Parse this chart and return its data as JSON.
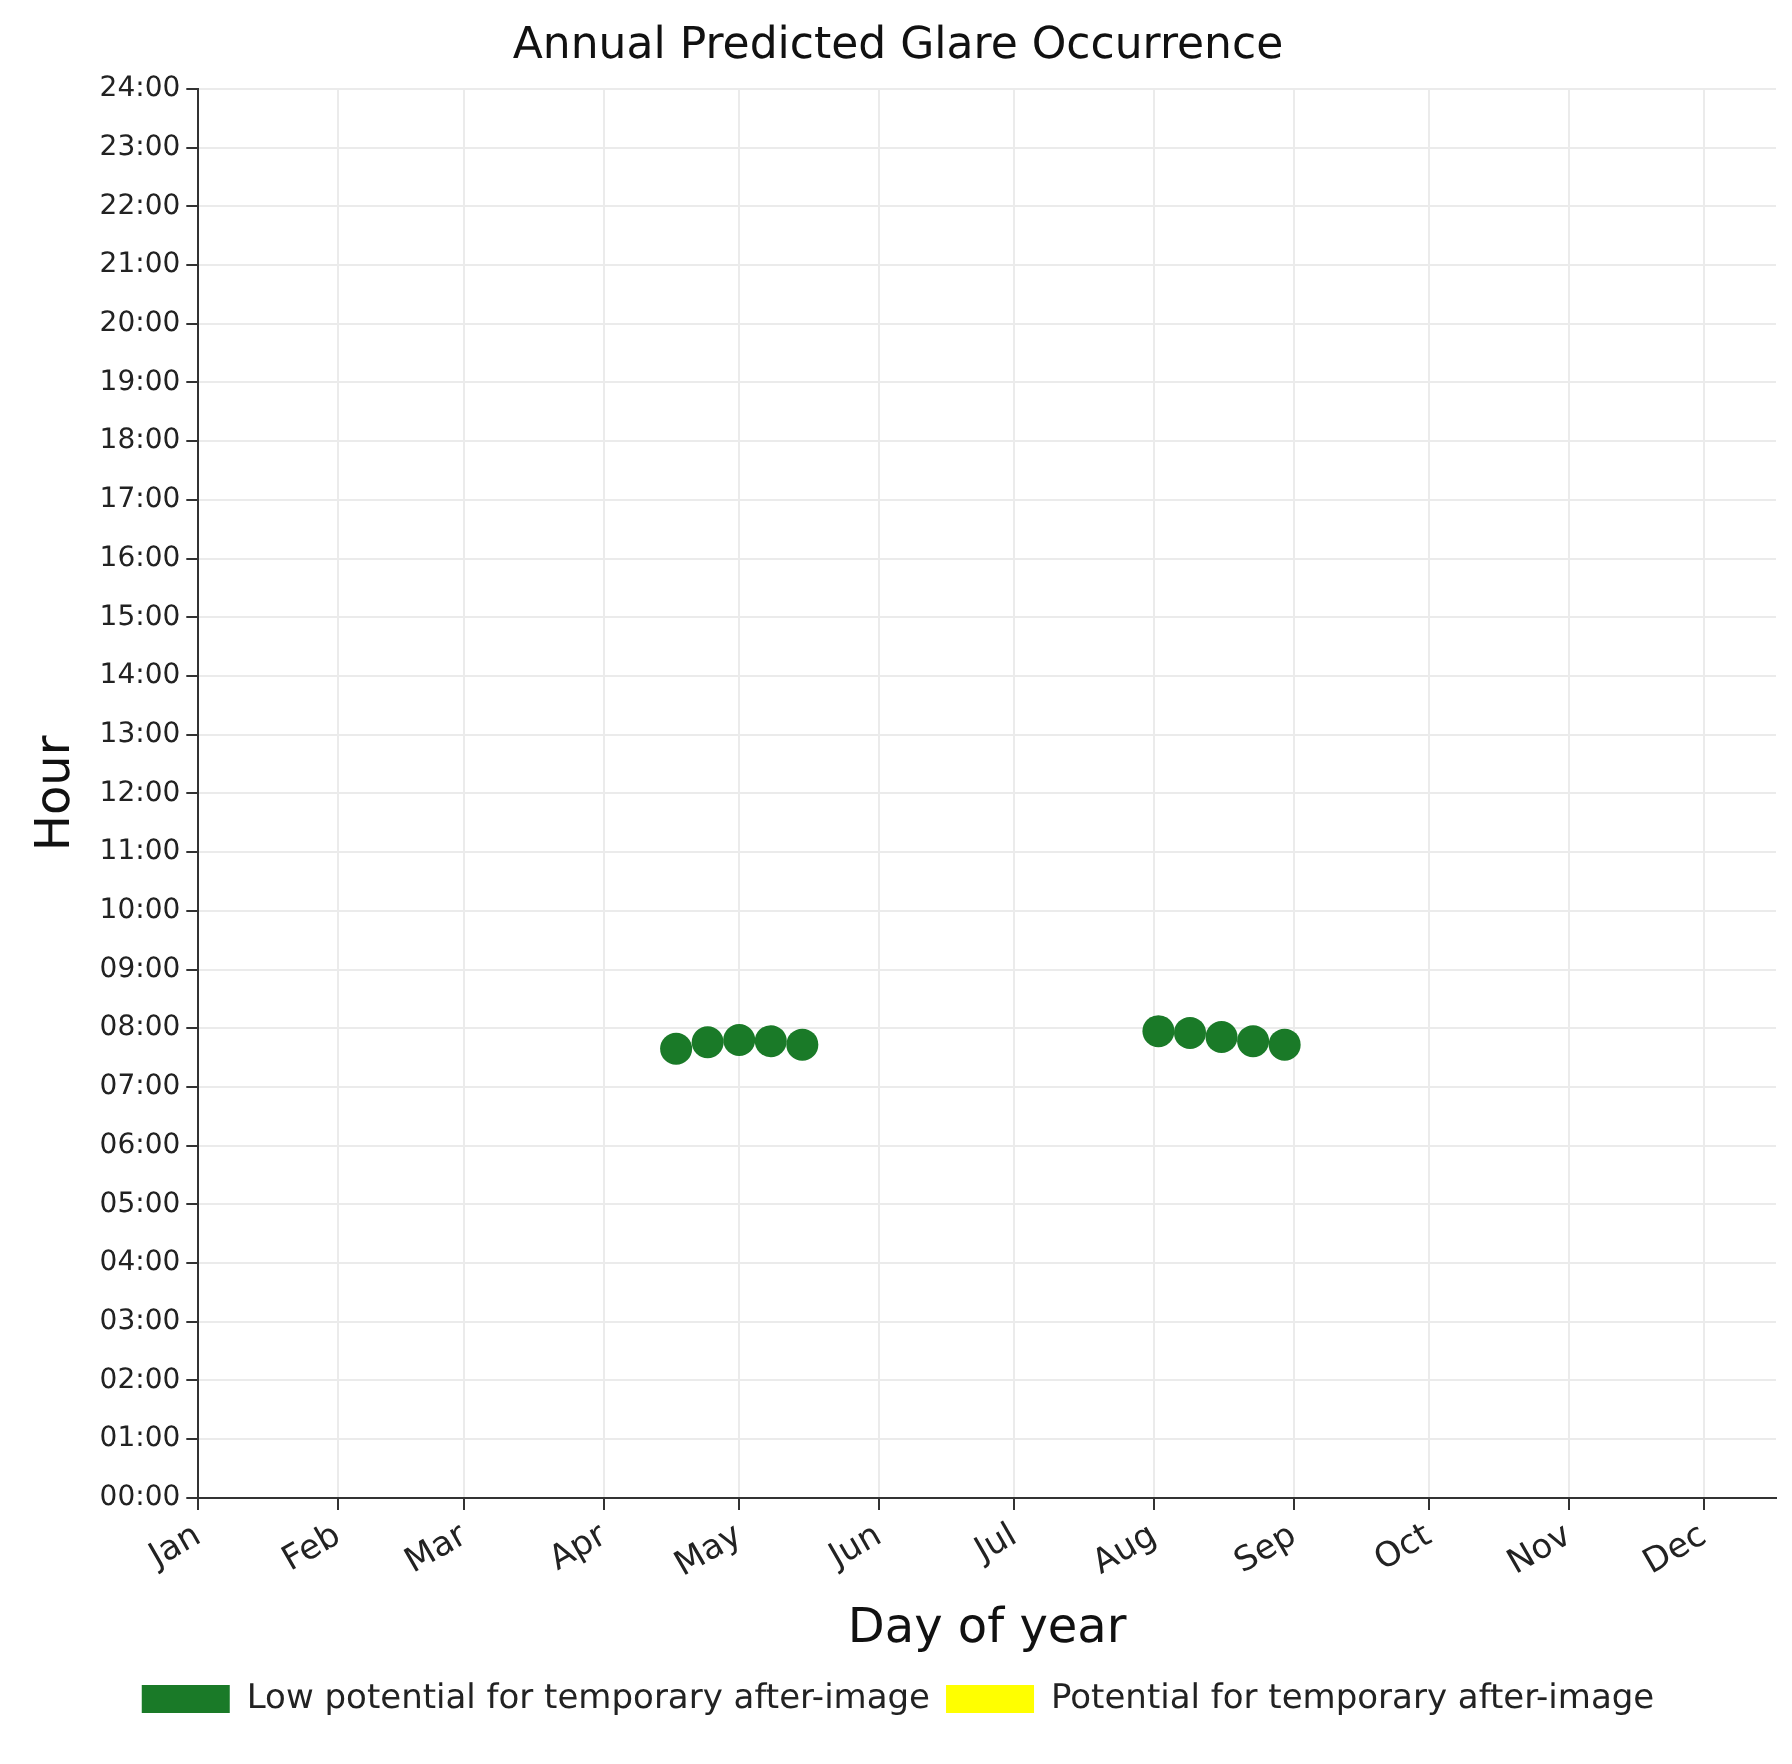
{
  "chart_data": {
    "type": "scatter",
    "title": "Annual Predicted Glare Occurrence",
    "xlabel": "Day of year",
    "ylabel": "Hour",
    "xlim": [
      "--01-01",
      "--12-17"
    ],
    "xticks": [
      {
        "value": "--01-01",
        "label": "Jan"
      },
      {
        "value": "--02-01",
        "label": "Feb"
      },
      {
        "value": "--03-01",
        "label": "Mar"
      },
      {
        "value": "--04-01",
        "label": "Apr"
      },
      {
        "value": "--05-01",
        "label": "May"
      },
      {
        "value": "--06-01",
        "label": "Jun"
      },
      {
        "value": "--07-01",
        "label": "Jul"
      },
      {
        "value": "--08-01",
        "label": "Aug"
      },
      {
        "value": "--09-01",
        "label": "Sep"
      },
      {
        "value": "--10-01",
        "label": "Oct"
      },
      {
        "value": "--11-01",
        "label": "Nov"
      },
      {
        "value": "--12-01",
        "label": "Dec"
      }
    ],
    "ylim": [
      0,
      24
    ],
    "yticks": [
      {
        "value": 0,
        "label": "00:00"
      },
      {
        "value": 1,
        "label": "01:00"
      },
      {
        "value": 2,
        "label": "02:00"
      },
      {
        "value": 3,
        "label": "03:00"
      },
      {
        "value": 4,
        "label": "04:00"
      },
      {
        "value": 5,
        "label": "05:00"
      },
      {
        "value": 6,
        "label": "06:00"
      },
      {
        "value": 7,
        "label": "07:00"
      },
      {
        "value": 8,
        "label": "08:00"
      },
      {
        "value": 9,
        "label": "09:00"
      },
      {
        "value": 10,
        "label": "10:00"
      },
      {
        "value": 11,
        "label": "11:00"
      },
      {
        "value": 12,
        "label": "12:00"
      },
      {
        "value": 13,
        "label": "13:00"
      },
      {
        "value": 14,
        "label": "14:00"
      },
      {
        "value": 15,
        "label": "15:00"
      },
      {
        "value": 16,
        "label": "16:00"
      },
      {
        "value": 17,
        "label": "17:00"
      },
      {
        "value": 18,
        "label": "18:00"
      },
      {
        "value": 19,
        "label": "19:00"
      },
      {
        "value": 20,
        "label": "20:00"
      },
      {
        "value": 21,
        "label": "21:00"
      },
      {
        "value": 22,
        "label": "22:00"
      },
      {
        "value": 23,
        "label": "23:00"
      },
      {
        "value": 24,
        "label": "24:00"
      }
    ],
    "series": [
      {
        "name": "Low potential for temporary after-image",
        "color": "#1a7a28",
        "x": [
          "--04-17",
          "--04-24",
          "--05-01",
          "--05-08",
          "--05-15",
          "--08-02",
          "--08-09",
          "--08-16",
          "--08-23",
          "--08-30"
        ],
        "values": [
          7.65,
          7.76,
          7.8,
          7.78,
          7.72,
          7.95,
          7.92,
          7.85,
          7.78,
          7.72
        ]
      },
      {
        "name": "Potential for temporary after-image",
        "color": "#ffff00"
      }
    ],
    "grid": true,
    "legend": "bottom",
    "marker": "circle"
  }
}
